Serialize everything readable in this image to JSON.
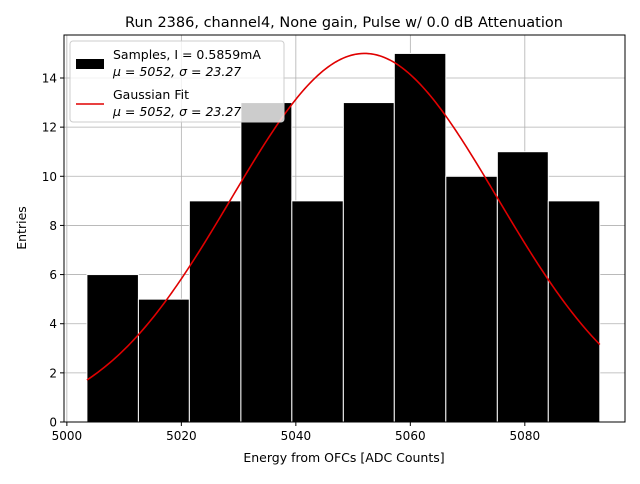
{
  "chart_data": {
    "type": "bar",
    "title": "Run 2386, channel4, None gain, Pulse w/ 0.0 dB Attenuation",
    "xlabel": "Energy from OFCs [ADC Counts]",
    "ylabel": "Entries",
    "xlim": [
      4999.5,
      5097.5
    ],
    "ylim": [
      0,
      15.75
    ],
    "xticks": [
      5000,
      5020,
      5040,
      5060,
      5080
    ],
    "yticks": [
      0,
      2,
      4,
      6,
      8,
      10,
      12,
      14
    ],
    "grid": true,
    "legend_position": "top-left",
    "histogram": {
      "name": "Samples, I = 0.5859mA",
      "stats": "μ = 5052, σ = 23.27",
      "color": "#000000",
      "edge_color": "#ffffff",
      "bin_edges": [
        5003.5,
        5012.5,
        5021.4,
        5030.4,
        5039.3,
        5048.3,
        5057.2,
        5066.2,
        5075.2,
        5084.1,
        5093.1
      ],
      "counts": [
        6,
        5,
        9,
        13,
        9,
        13,
        15,
        10,
        11,
        9
      ]
    },
    "fit": {
      "name": "Gaussian Fit",
      "stats": "μ = 5052, σ = 23.27",
      "color": "#e00000",
      "amplitude": 15.0,
      "mu": 5052,
      "sigma": 23.27,
      "x_range": [
        5003.5,
        5093.1
      ]
    }
  }
}
